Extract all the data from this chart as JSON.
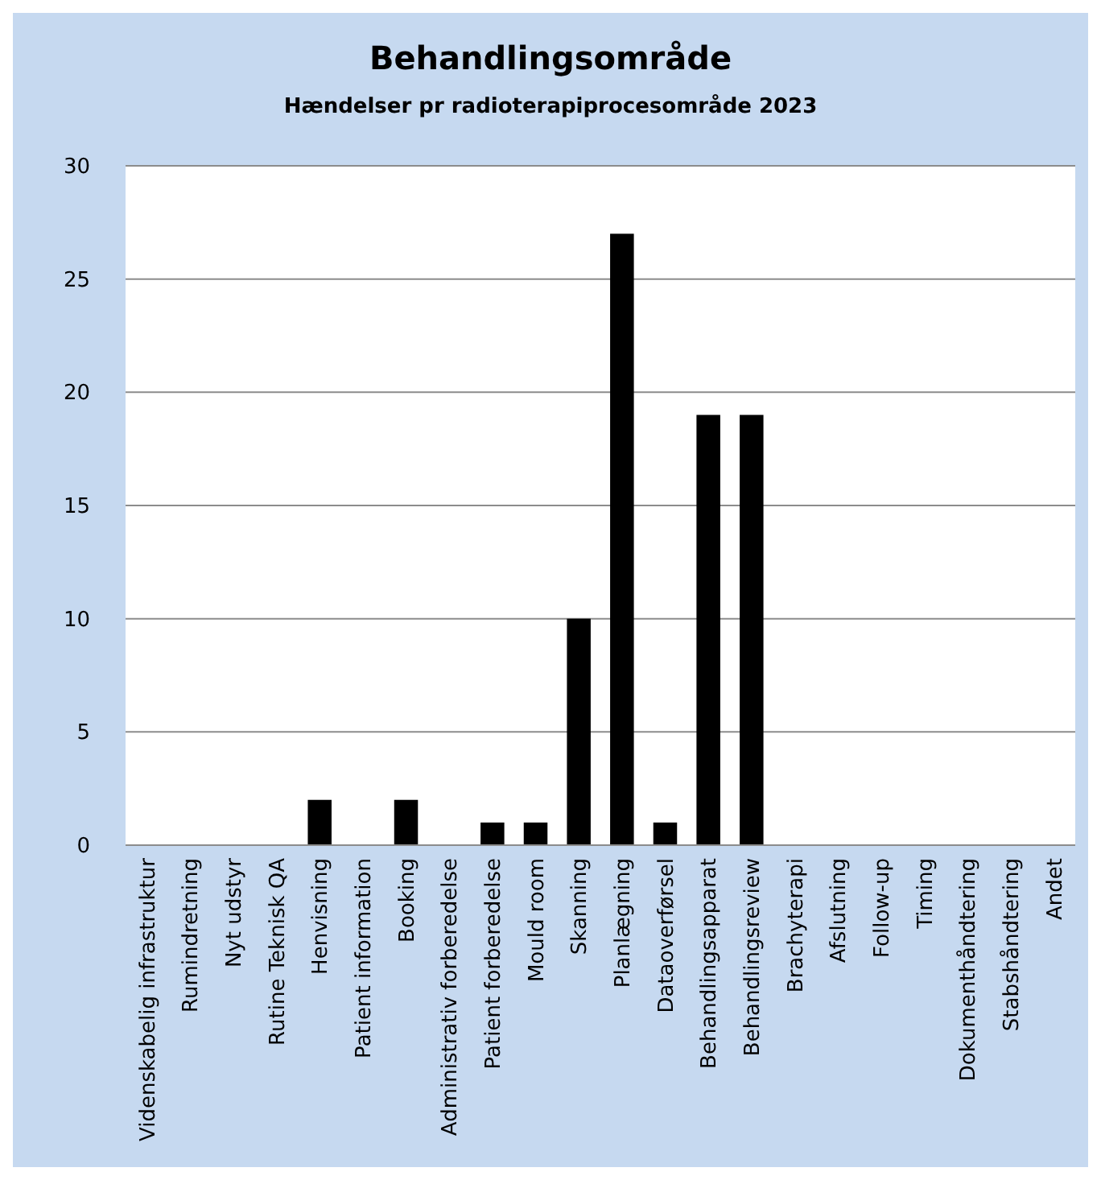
{
  "chart_data": {
    "type": "bar",
    "title": "Behandlingsområde",
    "subtitle": "Hændelser pr radioterapiprocesområde 2023",
    "categories": [
      "Videnskabelig infrastruktur",
      "Rumindretning",
      "Nyt udstyr",
      "Rutine Teknisk QA",
      "Henvisning",
      "Patient information",
      "Booking",
      "Administrativ forberedelse",
      "Patient forberedelse",
      "Mould room",
      "Skanning",
      "Planlægning",
      "Dataoverførsel",
      "Behandlingsapparat",
      "Behandlingsreview",
      "Brachyterapi",
      "Afslutning",
      "Follow-up",
      "Timing",
      "Dokumenthåndtering",
      "Stabshåndtering",
      "Andet"
    ],
    "values": [
      0,
      0,
      0,
      0,
      2,
      0,
      2,
      0,
      1,
      1,
      10,
      27,
      1,
      19,
      19,
      0,
      0,
      0,
      0,
      0,
      0,
      0
    ],
    "color": "#000000",
    "ylim": [
      0,
      30
    ],
    "yticks": [
      0,
      5,
      10,
      15,
      20,
      25,
      30
    ],
    "grid": "y"
  }
}
